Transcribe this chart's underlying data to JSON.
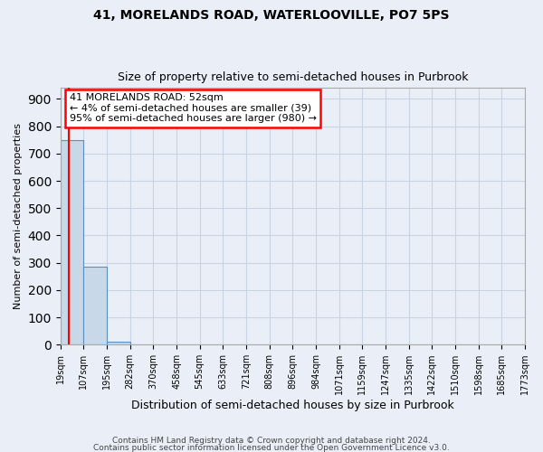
{
  "title": "41, MORELANDS ROAD, WATERLOOVILLE, PO7 5PS",
  "subtitle": "Size of property relative to semi-detached houses in Purbrook",
  "xlabel": "Distribution of semi-detached houses by size in Purbrook",
  "ylabel": "Number of semi-detached properties",
  "footer1": "Contains HM Land Registry data © Crown copyright and database right 2024.",
  "footer2": "Contains public sector information licensed under the Open Government Licence v3.0.",
  "property_size": 52,
  "annotation_line1": "41 MORELANDS ROAD: 52sqm",
  "annotation_line2": "← 4% of semi-detached houses are smaller (39)",
  "annotation_line3": "95% of semi-detached houses are larger (980) →",
  "bin_edges": [
    19,
    107,
    195,
    282,
    370,
    458,
    545,
    633,
    721,
    808,
    896,
    984,
    1071,
    1159,
    1247,
    1335,
    1422,
    1510,
    1598,
    1685,
    1773
  ],
  "bin_labels": [
    "19sqm",
    "107sqm",
    "195sqm",
    "282sqm",
    "370sqm",
    "458sqm",
    "545sqm",
    "633sqm",
    "721sqm",
    "808sqm",
    "896sqm",
    "984sqm",
    "1071sqm",
    "1159sqm",
    "1247sqm",
    "1335sqm",
    "1422sqm",
    "1510sqm",
    "1598sqm",
    "1685sqm",
    "1773sqm"
  ],
  "bar_heights": [
    750,
    285,
    10,
    0,
    0,
    0,
    0,
    0,
    0,
    0,
    0,
    0,
    0,
    0,
    0,
    0,
    0,
    0,
    0,
    0
  ],
  "bar_color": "#c8d8e8",
  "bar_edgecolor": "#5a8fc0",
  "red_line_x": 52,
  "ylim": [
    0,
    940
  ],
  "yticks": [
    0,
    100,
    200,
    300,
    400,
    500,
    600,
    700,
    800,
    900
  ],
  "grid_color": "#c8d4e4",
  "background_color": "#eaeff7",
  "annotation_box_color": "white",
  "annotation_box_edgecolor": "red",
  "red_line_color": "red"
}
